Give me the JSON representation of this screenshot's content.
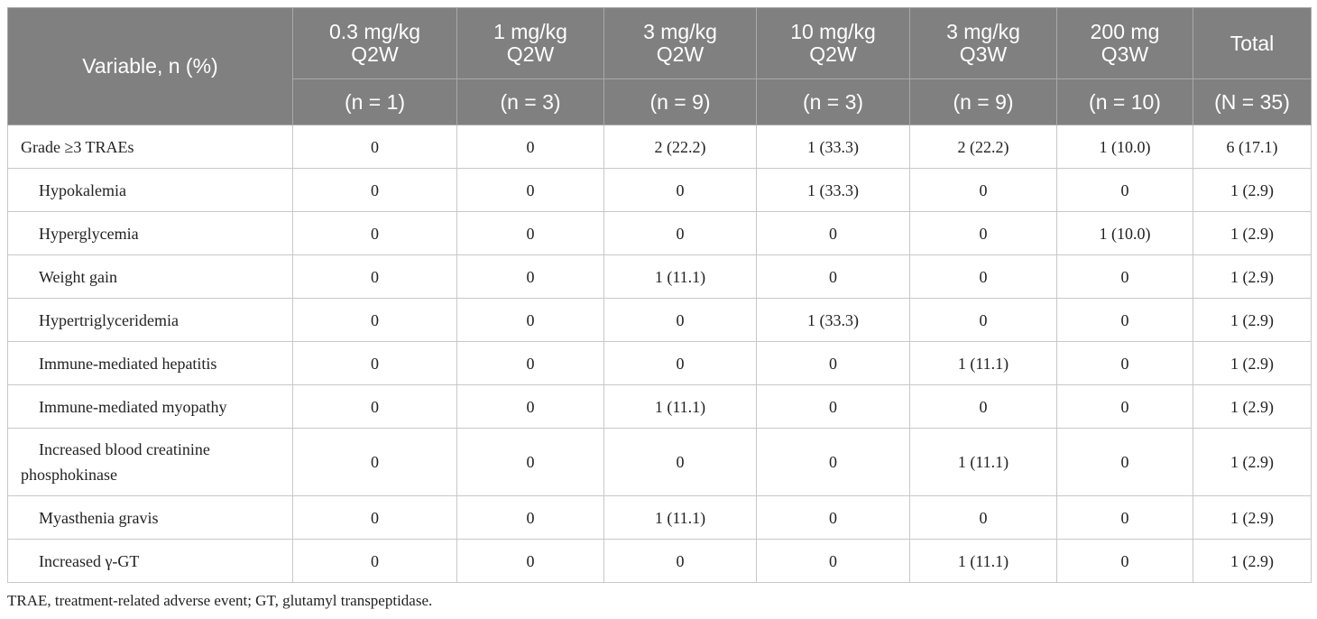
{
  "table": {
    "header": {
      "variable": "Variable, n (%)",
      "columns": [
        {
          "dose": "0.3 mg/kg",
          "schedule": "Q2W",
          "n": "(n = 1)"
        },
        {
          "dose": "1 mg/kg",
          "schedule": "Q2W",
          "n": "(n = 3)"
        },
        {
          "dose": "3 mg/kg",
          "schedule": "Q2W",
          "n": "(n = 9)"
        },
        {
          "dose": "10 mg/kg",
          "schedule": "Q2W",
          "n": "(n = 3)"
        },
        {
          "dose": "3 mg/kg",
          "schedule": "Q3W",
          "n": "(n = 9)"
        },
        {
          "dose": "200 mg",
          "schedule": "Q3W",
          "n": "(n = 10)"
        }
      ],
      "total": {
        "label": "Total",
        "n": "(N = 35)"
      }
    },
    "rows": [
      {
        "label": "Grade ≥3 TRAEs",
        "values": [
          "0",
          "0",
          "2 (22.2)",
          "1 (33.3)",
          "2 (22.2)",
          "1 (10.0)",
          "6 (17.1)"
        ]
      },
      {
        "label": "Hypokalemia",
        "values": [
          "0",
          "0",
          "0",
          "1 (33.3)",
          "0",
          "0",
          "1 (2.9)"
        ]
      },
      {
        "label": "Hyperglycemia",
        "values": [
          "0",
          "0",
          "0",
          "0",
          "0",
          "1 (10.0)",
          "1 (2.9)"
        ]
      },
      {
        "label": "Weight gain",
        "values": [
          "0",
          "0",
          "1 (11.1)",
          "0",
          "0",
          "0",
          "1 (2.9)"
        ]
      },
      {
        "label": "Hypertriglyceridemia",
        "values": [
          "0",
          "0",
          "0",
          "1 (33.3)",
          "0",
          "0",
          "1 (2.9)"
        ]
      },
      {
        "label": "Immune-mediated hepatitis",
        "values": [
          "0",
          "0",
          "0",
          "0",
          "1 (11.1)",
          "0",
          "1 (2.9)"
        ]
      },
      {
        "label": "Immune-mediated myopathy",
        "values": [
          "0",
          "0",
          "1 (11.1)",
          "0",
          "0",
          "0",
          "1 (2.9)"
        ]
      },
      {
        "label_line1": "Increased blood creatinine",
        "label_line2": "phosphokinase",
        "values": [
          "0",
          "0",
          "0",
          "0",
          "1 (11.1)",
          "0",
          "1 (2.9)"
        ]
      },
      {
        "label": "Myasthenia gravis",
        "values": [
          "0",
          "0",
          "1 (11.1)",
          "0",
          "0",
          "0",
          "1 (2.9)"
        ]
      },
      {
        "label": "Increased γ-GT",
        "values": [
          "0",
          "0",
          "0",
          "0",
          "1 (11.1)",
          "0",
          "1 (2.9)"
        ]
      }
    ]
  },
  "footnote": "TRAE, treatment-related adverse event; GT, glutamyl transpeptidase."
}
